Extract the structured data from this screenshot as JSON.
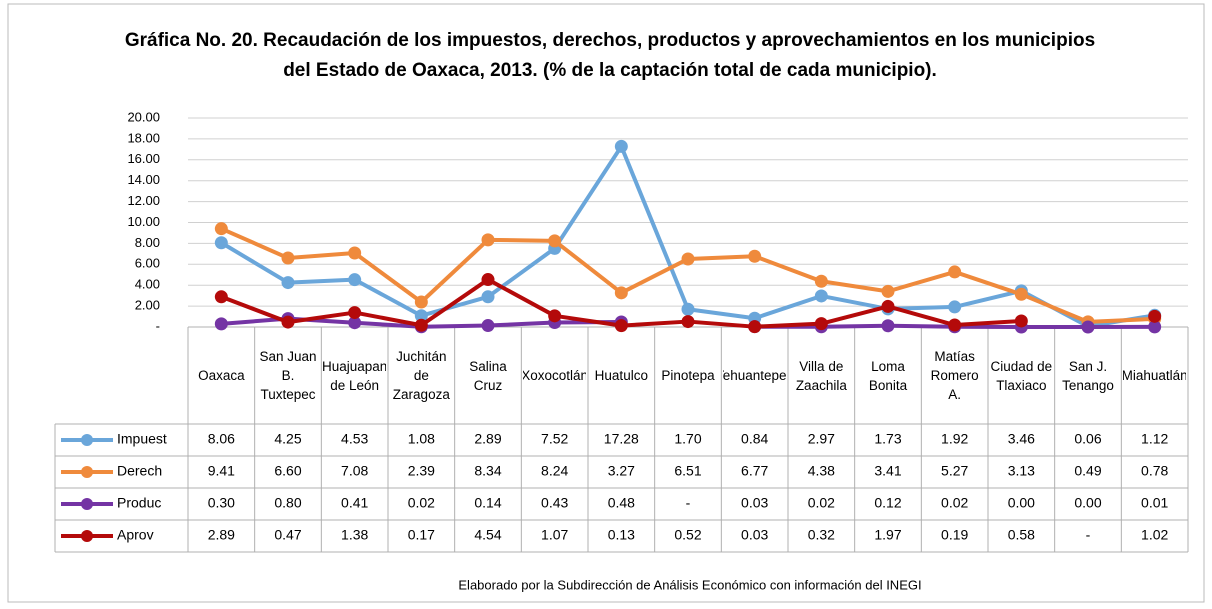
{
  "chart_data": {
    "type": "line",
    "title": "Gráfica No. 20. Recaudación de los impuestos, derechos, productos y aprovechamientos en los municipios del Estado de Oaxaca, 2013. (% de la captación total de cada municipio).",
    "source": "Elaborado por la Subdirección de Análisis Económico con información del INEGI",
    "categories": [
      "Oaxaca",
      "San Juan B. Tuxtepec",
      "Huajuapan de León",
      "Juchitán de Zaragoza",
      "Salina Cruz",
      "Xoxocotlán",
      "Huatulco",
      "Pinotepa",
      "Tehuantepec",
      "Villa de Zaachila",
      "Loma Bonita",
      "Matías Romero A.",
      "Ciudad de Tlaxiaco",
      "San J. Tenango",
      "Miahuatlán"
    ],
    "series": [
      {
        "name": "Impuest",
        "color": "#6aa6da",
        "values": [
          8.06,
          4.25,
          4.53,
          1.08,
          2.89,
          7.52,
          17.28,
          1.7,
          0.84,
          2.97,
          1.73,
          1.92,
          3.46,
          0.06,
          1.12
        ],
        "value_labels": [
          "8.06",
          "4.25",
          "4.53",
          "1.08",
          "2.89",
          "7.52",
          "17.28",
          "1.70",
          "0.84",
          "2.97",
          "1.73",
          "1.92",
          "3.46",
          "0.06",
          "1.12"
        ]
      },
      {
        "name": "Derech",
        "color": "#ef8a3c",
        "values": [
          9.41,
          6.6,
          7.08,
          2.39,
          8.34,
          8.24,
          3.27,
          6.51,
          6.77,
          4.38,
          3.41,
          5.27,
          3.13,
          0.49,
          0.78
        ],
        "value_labels": [
          "9.41",
          "6.60",
          "7.08",
          "2.39",
          "8.34",
          "8.24",
          "3.27",
          "6.51",
          "6.77",
          "4.38",
          "3.41",
          "5.27",
          "3.13",
          "0.49",
          "0.78"
        ]
      },
      {
        "name": "Produc",
        "color": "#7434a4",
        "values": [
          0.3,
          0.8,
          0.41,
          0.02,
          0.14,
          0.43,
          0.48,
          null,
          0.03,
          0.02,
          0.12,
          0.02,
          0.0,
          0.0,
          0.01
        ],
        "value_labels": [
          "0.30",
          "0.80",
          "0.41",
          "0.02",
          "0.14",
          "0.43",
          "0.48",
          "-",
          "0.03",
          "0.02",
          "0.12",
          "0.02",
          "0.00",
          "0.00",
          "0.01"
        ]
      },
      {
        "name": "Aprov",
        "color": "#b40a0a",
        "values": [
          2.89,
          0.47,
          1.38,
          0.17,
          4.54,
          1.07,
          0.13,
          0.52,
          0.03,
          0.32,
          1.97,
          0.19,
          0.58,
          null,
          1.02
        ],
        "value_labels": [
          "2.89",
          "0.47",
          "1.38",
          "0.17",
          "4.54",
          "1.07",
          "0.13",
          "0.52",
          "0.03",
          "0.32",
          "1.97",
          "0.19",
          "0.58",
          "-",
          "1.02"
        ]
      }
    ],
    "ylim": [
      0,
      20
    ],
    "yticks": [
      {
        "value": 0,
        "label": "-"
      },
      {
        "value": 2,
        "label": "2.00"
      },
      {
        "value": 4,
        "label": "4.00"
      },
      {
        "value": 6,
        "label": "6.00"
      },
      {
        "value": 8,
        "label": "8.00"
      },
      {
        "value": 10,
        "label": "10.00"
      },
      {
        "value": 12,
        "label": "12.00"
      },
      {
        "value": 14,
        "label": "14.00"
      },
      {
        "value": 16,
        "label": "16.00"
      },
      {
        "value": 18,
        "label": "18.00"
      },
      {
        "value": 20,
        "label": "20.00"
      }
    ],
    "grid": true
  }
}
